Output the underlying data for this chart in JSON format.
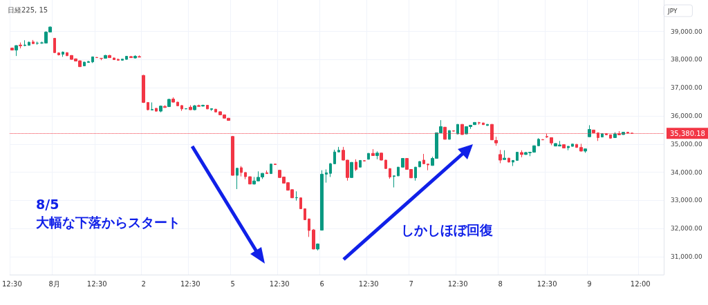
{
  "chart_data": {
    "type": "candlestick",
    "title": "日経225, 15",
    "ylabel": "JPY",
    "categories": [
      "12:30",
      null,
      null,
      null,
      null,
      null,
      null,
      null,
      null,
      null,
      "8月",
      null,
      null,
      null,
      null,
      null,
      null,
      null,
      null,
      null,
      "12:30",
      null,
      null,
      null,
      null,
      null,
      null,
      null,
      null,
      null,
      null,
      "2",
      null,
      null,
      null,
      null,
      null,
      null,
      null,
      null,
      null,
      null,
      "12:30",
      null,
      null,
      null,
      null,
      null,
      null,
      null,
      null,
      null,
      "5",
      null,
      null,
      null,
      null,
      null,
      null,
      null,
      null,
      null,
      null,
      "12:30",
      null,
      null,
      null,
      null,
      null,
      null,
      null,
      null,
      null,
      "6",
      null,
      null,
      null,
      null,
      null,
      null,
      null,
      null,
      null,
      null,
      "12:30",
      null,
      null,
      null,
      null,
      null,
      null,
      null,
      null,
      null,
      "7",
      null,
      null,
      null,
      null,
      null,
      null,
      null,
      null,
      null,
      null,
      "12:30",
      null,
      null,
      null,
      null,
      null,
      null,
      null,
      null,
      null,
      "8",
      null,
      null,
      null,
      null,
      null,
      null,
      null,
      null,
      null,
      null,
      "12:30",
      null,
      null,
      null,
      null,
      null,
      null,
      null,
      null,
      null,
      "9",
      null,
      null,
      null,
      null,
      null,
      null,
      null,
      null,
      null,
      null,
      null,
      "12:00",
      null,
      null,
      null,
      null,
      null
    ],
    "ohlc": [
      [
        38410,
        38430,
        38330,
        38340
      ],
      [
        38340,
        38510,
        38130,
        38500
      ],
      [
        38520,
        38610,
        38400,
        38490
      ],
      [
        38500,
        38690,
        38480,
        38520
      ],
      [
        38510,
        38640,
        38500,
        38620
      ],
      [
        38630,
        38700,
        38560,
        38570
      ],
      [
        38580,
        38640,
        38530,
        38590
      ],
      [
        38590,
        38640,
        38560,
        38600
      ],
      [
        38590,
        39010,
        38580,
        38980
      ],
      [
        38980,
        39180,
        38970,
        39160
      ],
      [
        38760,
        38770,
        38240,
        38250
      ],
      [
        38240,
        38260,
        38150,
        38170
      ],
      [
        38190,
        38290,
        38100,
        38270
      ],
      [
        38250,
        38260,
        38130,
        38140
      ],
      [
        38150,
        38160,
        38000,
        38010
      ],
      [
        38030,
        38040,
        37940,
        37950
      ],
      [
        37960,
        37970,
        37740,
        37750
      ],
      [
        37780,
        37930,
        37770,
        37910
      ],
      [
        37900,
        37960,
        37890,
        37930
      ],
      [
        37920,
        38110,
        37880,
        38100
      ],
      [
        38080,
        38090,
        38060,
        38070
      ],
      [
        38050,
        38060,
        37980,
        38040
      ],
      [
        38050,
        38170,
        38040,
        38150
      ],
      [
        38150,
        38170,
        38060,
        38070
      ],
      [
        38060,
        38070,
        37990,
        38000
      ],
      [
        38010,
        38040,
        37960,
        37980
      ],
      [
        37980,
        38030,
        37970,
        38020
      ],
      [
        38010,
        38130,
        38000,
        38120
      ],
      [
        38110,
        38130,
        38060,
        38070
      ],
      [
        38060,
        38160,
        38040,
        38120
      ],
      [
        38110,
        38150,
        38080,
        38090
      ],
      [
        37440,
        37460,
        36460,
        36480
      ],
      [
        36480,
        36490,
        36200,
        36220
      ],
      [
        36210,
        36480,
        36210,
        36230
      ],
      [
        36270,
        36280,
        36150,
        36170
      ],
      [
        36170,
        36370,
        36130,
        36350
      ],
      [
        36340,
        36380,
        36290,
        36300
      ],
      [
        36330,
        36610,
        36320,
        36590
      ],
      [
        36600,
        36660,
        36480,
        36490
      ],
      [
        36490,
        36500,
        36350,
        36360
      ],
      [
        36370,
        36380,
        36180,
        36250
      ],
      [
        36250,
        36270,
        36240,
        36260
      ],
      [
        36310,
        36380,
        36210,
        36220
      ],
      [
        36220,
        36390,
        36200,
        36360
      ],
      [
        36370,
        36400,
        36330,
        36340
      ],
      [
        36350,
        36400,
        36330,
        36380
      ],
      [
        36380,
        36390,
        36240,
        36250
      ],
      [
        36230,
        36270,
        36180,
        36260
      ],
      [
        36240,
        36250,
        36130,
        36140
      ],
      [
        36150,
        36160,
        36030,
        36040
      ],
      [
        36040,
        36050,
        35910,
        35920
      ],
      [
        35920,
        35930,
        35830,
        35840
      ],
      [
        35270,
        35290,
        33880,
        33890
      ],
      [
        33890,
        34150,
        33400,
        34140
      ],
      [
        34160,
        34220,
        33850,
        33990
      ],
      [
        33990,
        34000,
        33750,
        33840
      ],
      [
        33840,
        33850,
        33570,
        33580
      ],
      [
        33580,
        33830,
        33560,
        33690
      ],
      [
        33690,
        34030,
        33680,
        33820
      ],
      [
        33830,
        33970,
        33760,
        33960
      ],
      [
        33980,
        34060,
        33940,
        33950
      ],
      [
        33950,
        34300,
        33940,
        34290
      ],
      [
        34290,
        34300,
        34260,
        34270
      ],
      [
        34070,
        34080,
        33800,
        33810
      ],
      [
        33830,
        33840,
        33600,
        33610
      ],
      [
        33630,
        33640,
        33350,
        33360
      ],
      [
        33380,
        33390,
        33080,
        33090
      ],
      [
        33090,
        33320,
        32990,
        33100
      ],
      [
        33090,
        33100,
        32690,
        32700
      ],
      [
        32700,
        32710,
        32300,
        32310
      ],
      [
        32340,
        32350,
        31700,
        31930
      ],
      [
        31950,
        31980,
        31260,
        31270
      ],
      [
        31270,
        31470,
        31220,
        31450
      ],
      [
        31940,
        34070,
        31930,
        33930
      ],
      [
        33930,
        34100,
        33630,
        33980
      ],
      [
        33960,
        34330,
        33830,
        34300
      ],
      [
        34300,
        34800,
        34290,
        34720
      ],
      [
        34720,
        34900,
        34710,
        34780
      ],
      [
        34780,
        34900,
        34420,
        34430
      ],
      [
        34430,
        34440,
        33700,
        33810
      ],
      [
        33810,
        34360,
        33800,
        34350
      ],
      [
        34360,
        34460,
        34040,
        34100
      ],
      [
        34180,
        34430,
        34170,
        34420
      ],
      [
        34410,
        34420,
        34390,
        34400
      ],
      [
        34460,
        34680,
        34450,
        34670
      ],
      [
        34670,
        34820,
        34580,
        34590
      ],
      [
        34590,
        34740,
        34460,
        34680
      ],
      [
        34680,
        34690,
        34420,
        34430
      ],
      [
        34430,
        34440,
        34120,
        34130
      ],
      [
        34130,
        34140,
        33770,
        33830
      ],
      [
        33850,
        33880,
        33460,
        33870
      ],
      [
        33870,
        34190,
        33860,
        34180
      ],
      [
        34180,
        34500,
        34170,
        34490
      ],
      [
        34490,
        34500,
        34090,
        34100
      ],
      [
        34100,
        34110,
        33790,
        33800
      ],
      [
        33800,
        34190,
        33700,
        34180
      ],
      [
        34190,
        34390,
        34180,
        34380
      ],
      [
        34430,
        34650,
        34290,
        34300
      ],
      [
        34290,
        34300,
        34070,
        34260
      ],
      [
        34240,
        34550,
        34230,
        34490
      ],
      [
        34490,
        35410,
        34480,
        35400
      ],
      [
        35400,
        35850,
        35390,
        35620
      ],
      [
        35600,
        35610,
        35160,
        35170
      ],
      [
        35170,
        35490,
        35160,
        35480
      ],
      [
        35470,
        35480,
        35450,
        35460
      ],
      [
        35360,
        35710,
        35350,
        35700
      ],
      [
        35700,
        35710,
        35330,
        35340
      ],
      [
        35360,
        35630,
        35350,
        35620
      ],
      [
        35620,
        35680,
        35540,
        35670
      ],
      [
        35690,
        35780,
        35680,
        35770
      ],
      [
        35760,
        35790,
        35690,
        35750
      ],
      [
        35750,
        35760,
        35680,
        35690
      ],
      [
        35660,
        35710,
        35650,
        35700
      ],
      [
        35700,
        35710,
        35140,
        35150
      ],
      [
        35130,
        35260,
        34940,
        35040
      ],
      [
        34630,
        34790,
        34320,
        34430
      ],
      [
        34450,
        34780,
        34450,
        34500
      ],
      [
        34500,
        34510,
        34350,
        34360
      ],
      [
        34360,
        34430,
        34220,
        34420
      ],
      [
        34420,
        34720,
        34410,
        34710
      ],
      [
        34700,
        34780,
        34530,
        34630
      ],
      [
        34630,
        34720,
        34620,
        34700
      ],
      [
        34690,
        34720,
        34570,
        34710
      ],
      [
        34710,
        34950,
        34700,
        34940
      ],
      [
        34940,
        35210,
        34930,
        35170
      ],
      [
        35160,
        35170,
        35140,
        35150
      ],
      [
        35270,
        35370,
        35220,
        35250
      ],
      [
        35230,
        35240,
        34960,
        35040
      ],
      [
        34930,
        35030,
        34920,
        35020
      ],
      [
        34930,
        35110,
        34920,
        34970
      ],
      [
        34980,
        34990,
        34850,
        34860
      ],
      [
        34870,
        34930,
        34780,
        34920
      ],
      [
        34920,
        35010,
        34910,
        35000
      ],
      [
        34990,
        35000,
        34870,
        34880
      ],
      [
        34880,
        35010,
        34740,
        34750
      ],
      [
        34750,
        34830,
        34690,
        34830
      ],
      [
        35260,
        35670,
        35250,
        35520
      ],
      [
        35500,
        35510,
        35390,
        35400
      ],
      [
        35400,
        35410,
        35110,
        35230
      ],
      [
        35250,
        35380,
        35240,
        35370
      ],
      [
        35370,
        35380,
        35320,
        35330
      ],
      [
        35330,
        35340,
        35190,
        35210
      ],
      [
        35230,
        35420,
        35220,
        35360
      ],
      [
        35370,
        35460,
        35320,
        35330
      ],
      [
        35340,
        35430,
        35330,
        35420
      ],
      [
        35420,
        35430,
        35380,
        35390
      ],
      [
        35390,
        35390,
        35380,
        35380
      ],
      null,
      null,
      null,
      null,
      null,
      null,
      null
    ],
    "colors": [
      "#f23645",
      "#089981",
      "#f23645",
      "#089981",
      "#089981",
      "#f23645",
      "#089981",
      "#089981",
      "#089981",
      "#089981",
      "#f23645",
      "#f23645",
      "#089981",
      "#f23645",
      "#f23645",
      "#f23645",
      "#f23645",
      "#089981",
      "#089981",
      "#089981",
      "#f23645",
      "#f23645",
      "#089981",
      "#f23645",
      "#f23645",
      "#f23645",
      "#089981",
      "#089981",
      "#f23645",
      "#089981",
      "#f23645",
      "#f23645",
      "#f23645",
      "#089981",
      "#f23645",
      "#089981",
      "#f23645",
      "#089981",
      "#f23645",
      "#f23645",
      "#f23645",
      "#089981",
      "#f23645",
      "#089981",
      "#f23645",
      "#089981",
      "#f23645",
      "#089981",
      "#f23645",
      "#f23645",
      "#f23645",
      "#f23645",
      "#f23645",
      "#089981",
      "#f23645",
      "#f23645",
      "#f23645",
      "#089981",
      "#089981",
      "#089981",
      "#f23645",
      "#089981",
      "#f23645",
      "#f23645",
      "#f23645",
      "#f23645",
      "#f23645",
      "#089981",
      "#f23645",
      "#f23645",
      "#f23645",
      "#f23645",
      "#089981",
      "#089981",
      "#089981",
      "#089981",
      "#089981",
      "#089981",
      "#f23645",
      "#f23645",
      "#089981",
      "#f23645",
      "#089981",
      "#f23645",
      "#089981",
      "#f23645",
      "#089981",
      "#f23645",
      "#f23645",
      "#f23645",
      "#089981",
      "#089981",
      "#089981",
      "#f23645",
      "#f23645",
      "#089981",
      "#089981",
      "#f23645",
      "#f23645",
      "#089981",
      "#089981",
      "#089981",
      "#f23645",
      "#089981",
      "#f23645",
      "#089981",
      "#f23645",
      "#089981",
      "#089981",
      "#089981",
      "#f23645",
      "#f23645",
      "#089981",
      "#f23645",
      "#f23645",
      "#f23645",
      "#089981",
      "#f23645",
      "#089981",
      "#089981",
      "#f23645",
      "#089981",
      "#089981",
      "#089981",
      "#089981",
      "#f23645",
      "#f23645",
      "#f23645",
      "#089981",
      "#089981",
      "#f23645",
      "#089981",
      "#089981",
      "#f23645",
      "#f23645",
      "#089981",
      "#089981",
      "#f23645",
      "#f23645",
      "#089981",
      "#f23645",
      "#f23645",
      "#089981",
      "#f23645",
      "#089981",
      "#f23645",
      "#f23645",
      null,
      null,
      null,
      null,
      null,
      null,
      null
    ],
    "ylim": [
      30360,
      40120
    ],
    "yticks": [
      {
        "value": 31000,
        "label": "31,000.00"
      },
      {
        "value": 32000,
        "label": "32,000.00"
      },
      {
        "value": 33000,
        "label": "33,000.00"
      },
      {
        "value": 34000,
        "label": "34,000.00"
      },
      {
        "value": 35000,
        "label": "35,000.00"
      },
      {
        "value": 36000,
        "label": "36,000.00"
      },
      {
        "value": 37000,
        "label": "37,000.00"
      },
      {
        "value": 38000,
        "label": "38,000.00"
      },
      {
        "value": 39000,
        "label": "39,000.00"
      }
    ],
    "grid": true,
    "ref_lines": [
      {
        "axis": "y",
        "value": 35380.18,
        "label": "35,380.18",
        "color": "#f23645",
        "line_style": "dotted"
      }
    ],
    "annotations": [
      "8/5\n大幅な下落からスタート",
      "しかしほぼ回復"
    ]
  }
}
